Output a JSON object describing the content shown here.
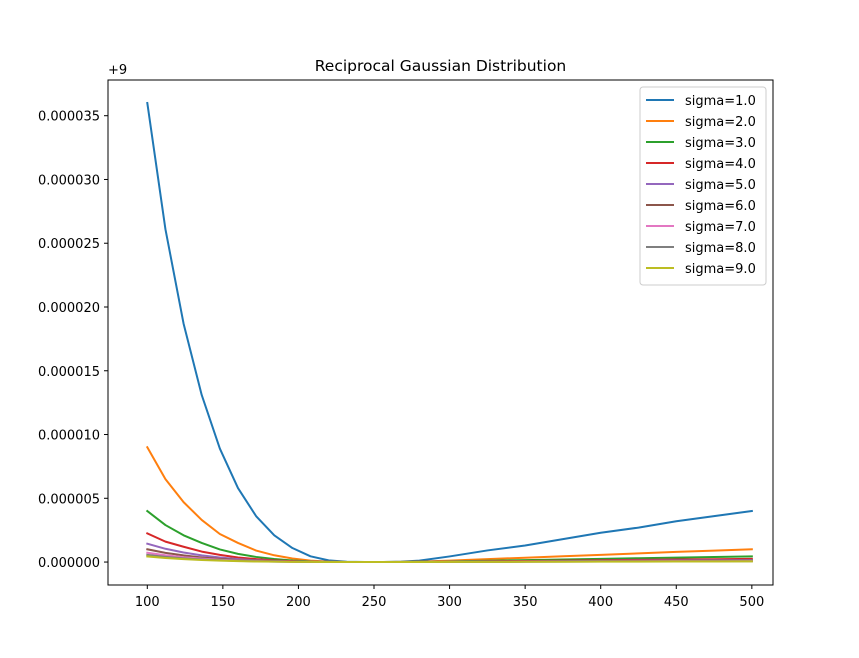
{
  "chart_data": {
    "type": "line",
    "title": "Reciprocal Gaussian Distribution",
    "xlabel": "",
    "ylabel": "",
    "y_offset_label": "+9",
    "xlim": [
      74,
      514
    ],
    "ylim": [
      -1.8e-06,
      3.78e-05
    ],
    "x_ticks": [
      100,
      150,
      200,
      250,
      300,
      350,
      400,
      450,
      500
    ],
    "y_ticks": [
      0.0,
      5e-06,
      1e-05,
      1.5e-05,
      2e-05,
      2.5e-05,
      3e-05,
      3.5e-05
    ],
    "y_tick_labels": [
      "0.000000",
      "0.000005",
      "0.000010",
      "0.000015",
      "0.000020",
      "0.000025",
      "0.000030",
      "0.000035"
    ],
    "grid": false,
    "legend_position": "top-right",
    "x": [
      100,
      112,
      124,
      136,
      148,
      160,
      172,
      184,
      196,
      208,
      220,
      232,
      244,
      256,
      268,
      280,
      300,
      325,
      350,
      375,
      400,
      425,
      450,
      475,
      500
    ],
    "series": [
      {
        "name": "sigma=1.0",
        "color": "#1f77b4",
        "values": [
          3.6e-05,
          2.61e-05,
          1.87e-05,
          1.31e-05,
          8.9e-06,
          5.8e-06,
          3.6e-06,
          2.1e-06,
          1.1e-06,
          4.5e-07,
          1.3e-07,
          2e-08,
          0.0,
          0.0,
          3e-08,
          1.1e-07,
          4.4e-07,
          9.1e-07,
          1.3e-06,
          1.8e-06,
          2.3e-06,
          2.7e-06,
          3.2e-06,
          3.6e-06,
          4e-06
        ]
      },
      {
        "name": "sigma=2.0",
        "color": "#ff7f0e",
        "values": [
          9e-06,
          6.5e-06,
          4.7e-06,
          3.3e-06,
          2.2e-06,
          1.5e-06,
          9e-07,
          5.3e-07,
          2.8e-07,
          1.1e-07,
          3e-08,
          0.0,
          0.0,
          0.0,
          1e-08,
          3e-08,
          1.1e-07,
          2.3e-07,
          3.4e-07,
          4.5e-07,
          5.6e-07,
          6.8e-07,
          8e-07,
          9e-07,
          1e-06
        ]
      },
      {
        "name": "sigma=3.0",
        "color": "#2ca02c",
        "values": [
          4e-06,
          2.9e-06,
          2.1e-06,
          1.5e-06,
          9.9e-07,
          6.4e-07,
          4e-07,
          2.4e-07,
          1.2e-07,
          5e-08,
          1e-08,
          0.0,
          0.0,
          0.0,
          0.0,
          1e-08,
          5e-08,
          1e-07,
          1.5e-07,
          2e-07,
          2.5e-07,
          3e-07,
          3.5e-07,
          4e-07,
          4.4e-07
        ]
      },
      {
        "name": "sigma=4.0",
        "color": "#d62728",
        "values": [
          2.25e-06,
          1.6e-06,
          1.2e-06,
          8.2e-07,
          5.6e-07,
          3.6e-07,
          2.3e-07,
          1.3e-07,
          7e-08,
          3e-08,
          1e-08,
          0.0,
          0.0,
          0.0,
          0.0,
          1e-08,
          3e-08,
          6e-08,
          8e-08,
          1.1e-07,
          1.4e-07,
          1.7e-07,
          2e-07,
          2.2e-07,
          2.5e-07
        ]
      },
      {
        "name": "sigma=5.0",
        "color": "#9467bd",
        "values": [
          1.44e-06,
          1.04e-06,
          7.5e-07,
          5.2e-07,
          3.6e-07,
          2.3e-07,
          1.4e-07,
          8e-08,
          4e-08,
          2e-08,
          1e-08,
          0.0,
          0.0,
          0.0,
          0.0,
          0.0,
          2e-08,
          4e-08,
          5e-08,
          7e-08,
          9e-08,
          1.1e-07,
          1.3e-07,
          1.4e-07,
          1.6e-07
        ]
      },
      {
        "name": "sigma=6.0",
        "color": "#8c564b",
        "values": [
          1e-06,
          7.2e-07,
          5.2e-07,
          3.6e-07,
          2.5e-07,
          1.6e-07,
          1e-07,
          6e-08,
          3e-08,
          1e-08,
          0.0,
          0.0,
          0.0,
          0.0,
          0.0,
          0.0,
          1e-08,
          3e-08,
          4e-08,
          5e-08,
          6e-08,
          8e-08,
          9e-08,
          1e-07,
          1.1e-07
        ]
      },
      {
        "name": "sigma=7.0",
        "color": "#e377c2",
        "values": [
          7.3e-07,
          5.3e-07,
          3.8e-07,
          2.7e-07,
          1.8e-07,
          1.2e-07,
          7e-08,
          4e-08,
          2e-08,
          1e-08,
          0.0,
          0.0,
          0.0,
          0.0,
          0.0,
          0.0,
          1e-08,
          2e-08,
          3e-08,
          4e-08,
          5e-08,
          6e-08,
          7e-08,
          7e-08,
          8e-08
        ]
      },
      {
        "name": "sigma=8.0",
        "color": "#7f7f7f",
        "values": [
          5.6e-07,
          4.1e-07,
          2.9e-07,
          2e-07,
          1.4e-07,
          9e-08,
          6e-08,
          3e-08,
          2e-08,
          1e-08,
          0.0,
          0.0,
          0.0,
          0.0,
          0.0,
          0.0,
          1e-08,
          1e-08,
          2e-08,
          3e-08,
          4e-08,
          4e-08,
          5e-08,
          6e-08,
          6e-08
        ]
      },
      {
        "name": "sigma=9.0",
        "color": "#bcbd22",
        "values": [
          4.4e-07,
          3.2e-07,
          2.3e-07,
          1.6e-07,
          1.1e-07,
          7e-08,
          4e-08,
          3e-08,
          1e-08,
          1e-08,
          0.0,
          0.0,
          0.0,
          0.0,
          0.0,
          0.0,
          1e-08,
          1e-08,
          2e-08,
          2e-08,
          3e-08,
          3e-08,
          4e-08,
          4e-08,
          5e-08
        ]
      }
    ]
  }
}
